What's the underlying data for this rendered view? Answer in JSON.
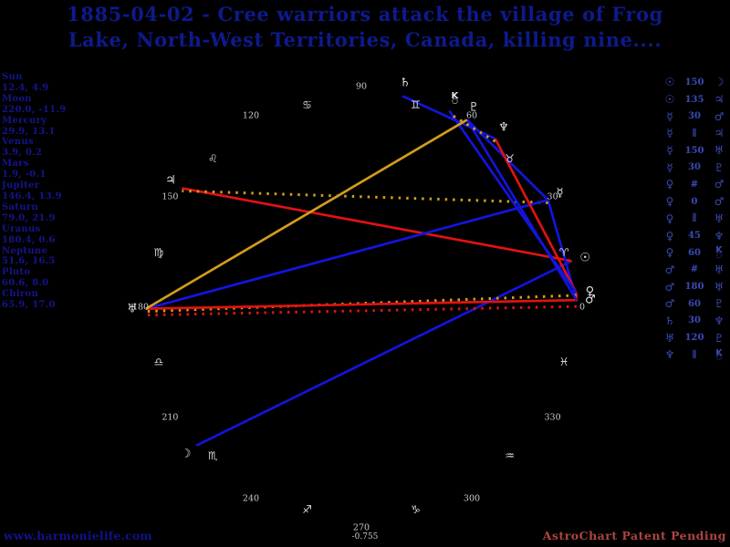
{
  "title": {
    "line1": "1885-04-02 - Cree warriors attack the village of Frog",
    "line2": "Lake, North-West Territories, Canada, killing nine...."
  },
  "footer": {
    "watermark": "www.harmonielife.com",
    "patent": "AstroChart Patent Pending"
  },
  "colors": {
    "background": "#000000",
    "title_text": "#0e1a8c",
    "planet_list_text": "#14148c",
    "aspect_list_text": "#3a4ab8",
    "chart_text": "#d9dade",
    "aspect_hard": "#e01212",
    "aspect_soft": "#1414dd",
    "aspect_trine": "#d19d1b",
    "parallel_dotted": "#d19d1b",
    "contraparallel_dotted": "#e01212",
    "patent_text": "#b04343"
  },
  "chart_data": {
    "type": "scatter",
    "subtype": "astrological-wheel",
    "title": "1885-04-02 - Cree warriors attack the village of Frog Lake, North-West Territories, Canada, killing nine....",
    "ring_degree_labels": [
      "0",
      "30",
      "60",
      "90",
      "120",
      "150",
      "180",
      "210",
      "240",
      "270",
      "300",
      "330"
    ],
    "extra_label": "-0.755",
    "zodiac_signs": [
      {
        "name": "Aries",
        "glyph": "♈",
        "mid_deg": 15
      },
      {
        "name": "Taurus",
        "glyph": "♉",
        "mid_deg": 45
      },
      {
        "name": "Gemini",
        "glyph": "♊",
        "mid_deg": 75
      },
      {
        "name": "Cancer",
        "glyph": "♋",
        "mid_deg": 105
      },
      {
        "name": "Leo",
        "glyph": "♌",
        "mid_deg": 135
      },
      {
        "name": "Virgo",
        "glyph": "♍",
        "mid_deg": 165
      },
      {
        "name": "Libra",
        "glyph": "♎",
        "mid_deg": 195
      },
      {
        "name": "Scorpio",
        "glyph": "♏",
        "mid_deg": 225
      },
      {
        "name": "Sagittarius",
        "glyph": "♐",
        "mid_deg": 255
      },
      {
        "name": "Capricorn",
        "glyph": "♑",
        "mid_deg": 285
      },
      {
        "name": "Aquarius",
        "glyph": "♒",
        "mid_deg": 315
      },
      {
        "name": "Pisces",
        "glyph": "♓",
        "mid_deg": 345
      }
    ],
    "planets": [
      {
        "name": "Sun",
        "glyph": "☉",
        "lon": "12.4",
        "dec": "4.9"
      },
      {
        "name": "Moon",
        "glyph": "☽",
        "lon": "220.0",
        "dec": "-11.9"
      },
      {
        "name": "Mercury",
        "glyph": "☿",
        "lon": "29.9",
        "dec": "13.1"
      },
      {
        "name": "Venus",
        "glyph": "♀",
        "lon": "3.9",
        "dec": "0.2"
      },
      {
        "name": "Mars",
        "glyph": "♂",
        "lon": "1.9",
        "dec": "-0.1"
      },
      {
        "name": "Jupiter",
        "glyph": "♃",
        "lon": "146.4",
        "dec": "13.9"
      },
      {
        "name": "Saturn",
        "glyph": "♄",
        "lon": "79.0",
        "dec": "21.9"
      },
      {
        "name": "Uranus",
        "glyph": "♅",
        "lon": "180.4",
        "dec": "0.6"
      },
      {
        "name": "Neptune",
        "glyph": "♆",
        "lon": "51.6",
        "dec": "16.5"
      },
      {
        "name": "Pluto",
        "glyph": "♇",
        "lon": "60.6",
        "dec": "8.0"
      },
      {
        "name": "Chiron",
        "glyph": "⚷",
        "lon": "65.9",
        "dec": "17.0"
      }
    ],
    "aspects": [
      {
        "a": "Sun",
        "type": "150",
        "b": "Moon"
      },
      {
        "a": "Sun",
        "type": "135",
        "b": "Jupiter"
      },
      {
        "a": "Mercury",
        "type": "30",
        "b": "Mars"
      },
      {
        "a": "Mercury",
        "type": "par",
        "b": "Jupiter"
      },
      {
        "a": "Mercury",
        "type": "150",
        "b": "Uranus"
      },
      {
        "a": "Mercury",
        "type": "30",
        "b": "Pluto"
      },
      {
        "a": "Venus",
        "type": "contra",
        "b": "Mars"
      },
      {
        "a": "Venus",
        "type": "0",
        "b": "Mars"
      },
      {
        "a": "Venus",
        "type": "par",
        "b": "Uranus"
      },
      {
        "a": "Venus",
        "type": "45",
        "b": "Neptune"
      },
      {
        "a": "Venus",
        "type": "60",
        "b": "Chiron"
      },
      {
        "a": "Mars",
        "type": "contra",
        "b": "Uranus"
      },
      {
        "a": "Mars",
        "type": "180",
        "b": "Uranus"
      },
      {
        "a": "Mars",
        "type": "60",
        "b": "Pluto"
      },
      {
        "a": "Saturn",
        "type": "30",
        "b": "Neptune"
      },
      {
        "a": "Uranus",
        "type": "120",
        "b": "Pluto"
      },
      {
        "a": "Neptune",
        "type": "par",
        "b": "Chiron"
      }
    ],
    "aspect_symbol_map": {
      "par": "∥",
      "contra": "#"
    }
  }
}
